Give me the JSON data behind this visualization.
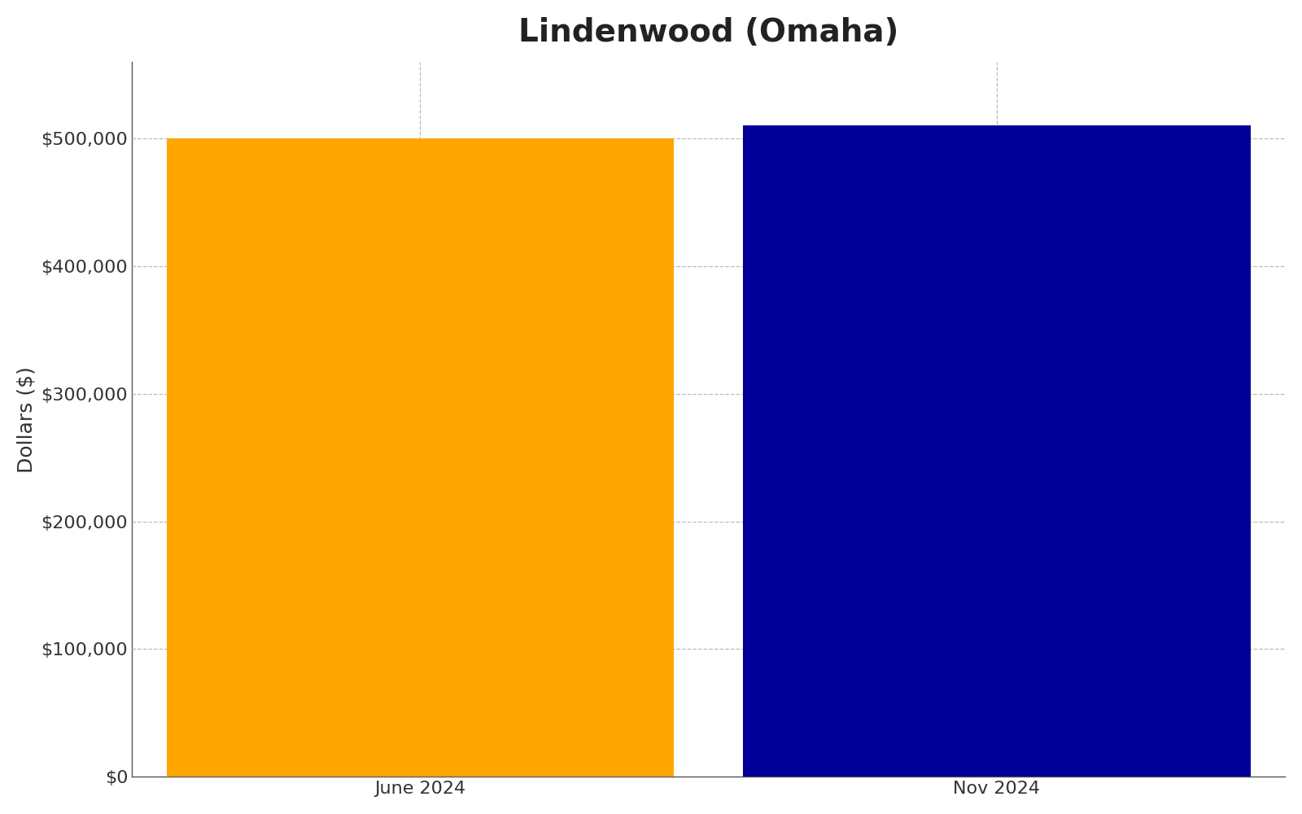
{
  "title": "Lindenwood (Omaha)",
  "categories": [
    "June 2024",
    "Nov 2024"
  ],
  "values": [
    500000,
    510000
  ],
  "bar_colors": [
    "#FFA500",
    "#000099"
  ],
  "ylabel": "Dollars ($)",
  "ylim": [
    0,
    560000
  ],
  "yticks": [
    0,
    100000,
    200000,
    300000,
    400000,
    500000
  ],
  "ytick_labels": [
    "$0",
    "$100,000",
    "$200,000",
    "$300,000",
    "$400,000",
    "$500,000"
  ],
  "title_fontsize": 28,
  "axis_label_fontsize": 18,
  "tick_fontsize": 16,
  "background_color": "#ffffff",
  "grid_color": "#bbbbbb",
  "bar_width": 0.88,
  "xlim": [
    -0.5,
    1.5
  ]
}
